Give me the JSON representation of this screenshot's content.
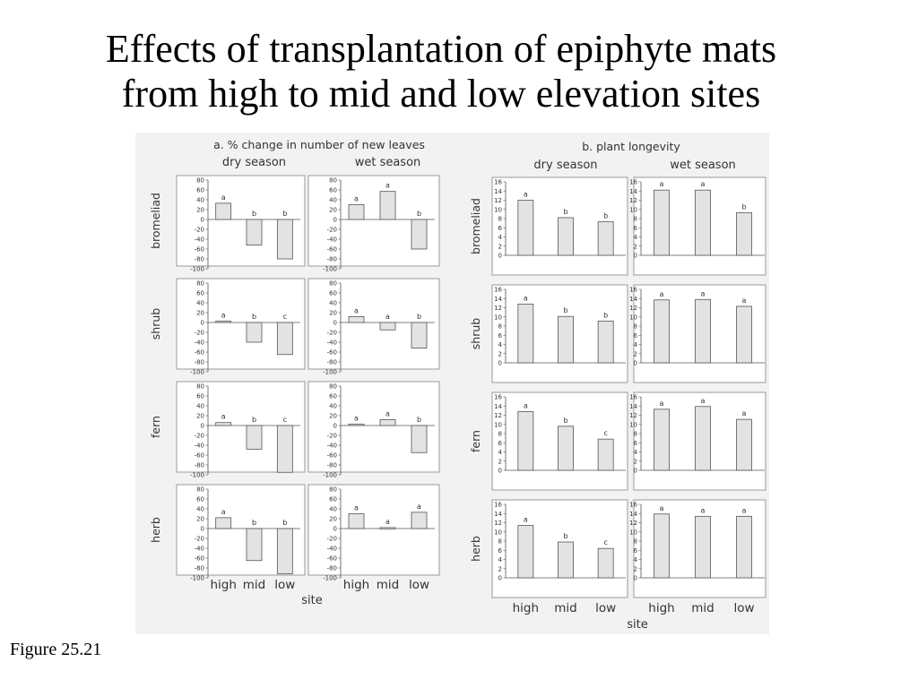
{
  "slide": {
    "title_line1": "Effects of transplantation of epiphyte mats",
    "title_line2": "from high to mid and low elevation sites",
    "figure_label": "Figure 25.21"
  },
  "colors": {
    "panel_background": "#f2f2f2",
    "bar_fill": "#e3e3e3",
    "bar_stroke": "#555555",
    "axis_box": "#999999",
    "text": "#333333"
  },
  "chart_data": [
    {
      "type": "bar",
      "title": "a. % change in number of new leaves",
      "column_titles": [
        "dry season",
        "wet season"
      ],
      "row_labels": [
        "bromeliad",
        "shrub",
        "fern",
        "herb"
      ],
      "categories": [
        "high",
        "mid",
        "low"
      ],
      "xlabel": "site",
      "ylabel": "",
      "ylim": [
        -100,
        80
      ],
      "yticks": [
        80,
        60,
        40,
        20,
        0,
        -20,
        -40,
        -60,
        -80,
        -100
      ],
      "grid": false,
      "panels": [
        {
          "row": "bromeliad",
          "season": "dry season",
          "values": [
            33,
            -52,
            -80
          ],
          "letters": [
            "a",
            "b",
            "b"
          ]
        },
        {
          "row": "bromeliad",
          "season": "wet season",
          "values": [
            30,
            57,
            -60
          ],
          "letters": [
            "a",
            "a",
            "b"
          ]
        },
        {
          "row": "shrub",
          "season": "dry season",
          "values": [
            3,
            -40,
            -65
          ],
          "letters": [
            "a",
            "b",
            "c"
          ]
        },
        {
          "row": "shrub",
          "season": "wet season",
          "values": [
            12,
            -15,
            -52
          ],
          "letters": [
            "a",
            "a",
            "b"
          ]
        },
        {
          "row": "fern",
          "season": "dry season",
          "values": [
            6,
            -48,
            -95
          ],
          "letters": [
            "a",
            "b",
            "c"
          ]
        },
        {
          "row": "fern",
          "season": "wet season",
          "values": [
            3,
            12,
            -55
          ],
          "letters": [
            "a",
            "a",
            "b"
          ]
        },
        {
          "row": "herb",
          "season": "dry season",
          "values": [
            22,
            -65,
            -92
          ],
          "letters": [
            "a",
            "b",
            "b"
          ]
        },
        {
          "row": "herb",
          "season": "wet season",
          "values": [
            30,
            2,
            33
          ],
          "letters": [
            "a",
            "a",
            "a"
          ]
        }
      ]
    },
    {
      "type": "bar",
      "title": "b. plant longevity",
      "column_titles": [
        "dry season",
        "wet season"
      ],
      "row_labels": [
        "bromeliad",
        "shrub",
        "fern",
        "herb"
      ],
      "categories": [
        "high",
        "mid",
        "low"
      ],
      "xlabel": "site",
      "ylabel": "",
      "ylim": [
        0,
        16
      ],
      "yticks": [
        16,
        14,
        12,
        10,
        8,
        6,
        4,
        2,
        0
      ],
      "grid": false,
      "panels": [
        {
          "row": "bromeliad",
          "season": "dry season",
          "values": [
            12,
            8.2,
            7.3
          ],
          "letters": [
            "a",
            "b",
            "b"
          ]
        },
        {
          "row": "bromeliad",
          "season": "wet season",
          "values": [
            14.2,
            14.2,
            9.3
          ],
          "letters": [
            "a",
            "a",
            "b"
          ]
        },
        {
          "row": "shrub",
          "season": "dry season",
          "values": [
            12.8,
            10.1,
            9.1
          ],
          "letters": [
            "a",
            "b",
            "b"
          ]
        },
        {
          "row": "shrub",
          "season": "wet season",
          "values": [
            13.7,
            13.8,
            12.3
          ],
          "letters": [
            "a",
            "a",
            "a"
          ]
        },
        {
          "row": "fern",
          "season": "dry season",
          "values": [
            12.8,
            9.6,
            6.8
          ],
          "letters": [
            "a",
            "b",
            "c"
          ]
        },
        {
          "row": "fern",
          "season": "wet season",
          "values": [
            13.3,
            13.9,
            11.1
          ],
          "letters": [
            "a",
            "a",
            "a"
          ]
        },
        {
          "row": "herb",
          "season": "dry season",
          "values": [
            11.4,
            7.8,
            6.4
          ],
          "letters": [
            "a",
            "b",
            "c"
          ]
        },
        {
          "row": "herb",
          "season": "wet season",
          "values": [
            13.9,
            13.4,
            13.4
          ],
          "letters": [
            "a",
            "a",
            "a"
          ]
        }
      ]
    }
  ]
}
